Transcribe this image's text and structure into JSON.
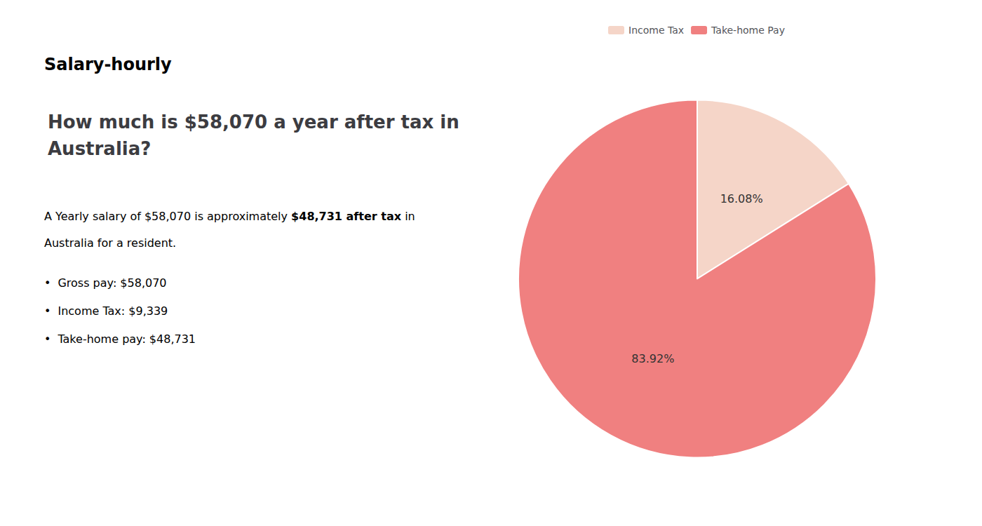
{
  "chart_data": {
    "type": "pie",
    "title": "How much is $58,070 a year after tax in\nAustralia?",
    "categories": [
      "Income Tax",
      "Take-home Pay"
    ],
    "values": [
      16.08,
      83.92
    ],
    "value_labels": [
      "16.08%",
      "83.92%"
    ],
    "colors": [
      "#f5d5c8",
      "#f08080"
    ],
    "data_labels": true,
    "legend": "top",
    "annotations": [
      [
        {
          "text": "S",
          "color": "#c0392b"
        },
        {
          "text": "alary-hourly",
          "color": "#111111"
        }
      ],
      [
        {
          "text": "A Yearly salary of $58,070 is approximately ",
          "color": "#2c2c2c"
        },
        {
          "text": "$48,731 after tax",
          "color": "#c0392b"
        },
        {
          "text": " in",
          "color": "#2c2c2c"
        }
      ],
      [
        {
          "text": "Australia for a resident.",
          "color": "#2c2c2c"
        }
      ],
      [
        {
          "text": "•",
          "color": "#2c2c2c"
        },
        {
          "text": "Gross pay: $58,070",
          "color": "#2c2c2c"
        }
      ],
      [
        {
          "text": "•",
          "color": "#2c2c2c"
        },
        {
          "text": "Income Tax: $9,339",
          "color": "#2c2c2c"
        }
      ],
      [
        {
          "text": "•",
          "color": "#2c2c2c"
        },
        {
          "text": "Take-home pay: $48,731",
          "color": "#2c2c2c"
        }
      ]
    ]
  }
}
